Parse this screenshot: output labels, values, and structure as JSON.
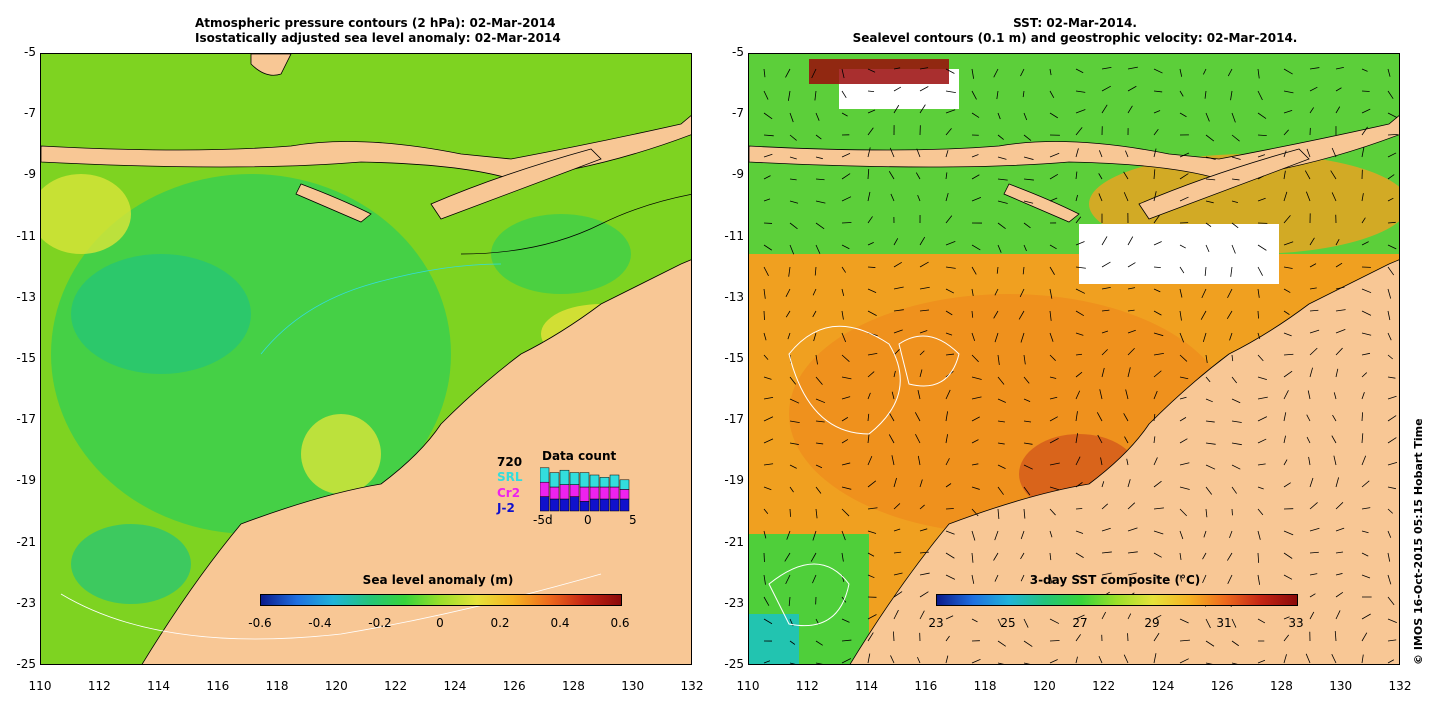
{
  "left_panel": {
    "title_line1": "Atmospheric pressure contours (2 hPa): 02-Mar-2014",
    "title_line2": "Isostatically adjusted sea level anomaly: 02-Mar-2014",
    "colorbar": {
      "title": "Sea level anomaly (m)",
      "labels": [
        "-0.6",
        "-0.4",
        "-0.2",
        "0",
        "0.2",
        "0.4",
        "0.6"
      ]
    },
    "inset": {
      "title": "Data count",
      "count_label": "720",
      "missions": [
        {
          "name": "SRL",
          "color": "#33dddd"
        },
        {
          "name": "Cr2",
          "color": "#ee22ee"
        },
        {
          "name": "J-2",
          "color": "#1111cc"
        }
      ],
      "axis_labels": [
        "-5d",
        "0",
        "5"
      ],
      "bars": [
        {
          "j2": 0.3,
          "cr2": 0.3,
          "srl": 0.3
        },
        {
          "j2": 0.25,
          "cr2": 0.25,
          "srl": 0.3
        },
        {
          "j2": 0.25,
          "cr2": 0.3,
          "srl": 0.3
        },
        {
          "j2": 0.3,
          "cr2": 0.25,
          "srl": 0.25
        },
        {
          "j2": 0.2,
          "cr2": 0.3,
          "srl": 0.3
        },
        {
          "j2": 0.25,
          "cr2": 0.25,
          "srl": 0.25
        },
        {
          "j2": 0.25,
          "cr2": 0.25,
          "srl": 0.2
        },
        {
          "j2": 0.25,
          "cr2": 0.25,
          "srl": 0.25
        },
        {
          "j2": 0.25,
          "cr2": 0.2,
          "srl": 0.2
        }
      ]
    }
  },
  "right_panel": {
    "title_line1": "SST: 02-Mar-2014.",
    "title_line2": "Sealevel contours (0.1 m) and geostrophic velocity: 02-Mar-2014.",
    "colorbar": {
      "title": "3-day SST composite (°C)",
      "labels": [
        "23",
        "25",
        "27",
        "29",
        "31",
        "33"
      ]
    }
  },
  "axes": {
    "y_labels": [
      "-5",
      "-7",
      "-9",
      "-11",
      "-13",
      "-15",
      "-17",
      "-19",
      "-21",
      "-23",
      "-25"
    ],
    "x_labels": [
      "110",
      "112",
      "114",
      "116",
      "118",
      "120",
      "122",
      "124",
      "126",
      "128",
      "130",
      "132"
    ]
  },
  "credit": "© IMOS 16-Oct-2015 05:15 Hobart Time"
}
